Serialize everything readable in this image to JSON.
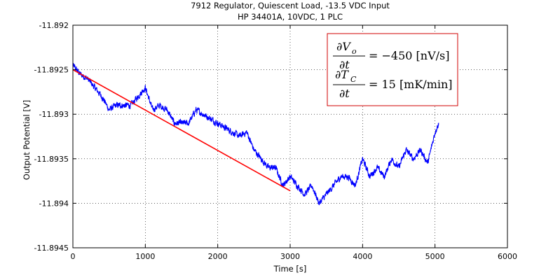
{
  "chart_data": {
    "type": "line",
    "title": "7912 Regulator, Quiescent Load, -13.5 VDC Input",
    "subtitle": "HP 34401A, 10VDC, 1 PLC",
    "xlabel": "Time [s]",
    "ylabel": "Output Potential [V]",
    "xlim": [
      0,
      6000
    ],
    "ylim": [
      -11.8945,
      -11.892
    ],
    "x_ticks": [
      0,
      1000,
      2000,
      3000,
      4000,
      5000,
      6000
    ],
    "x_tick_labels": [
      "0",
      "1000",
      "2000",
      "3000",
      "4000",
      "5000",
      "6000"
    ],
    "y_ticks": [
      -11.892,
      -11.8925,
      -11.893,
      -11.8935,
      -11.894,
      -11.8945
    ],
    "y_tick_labels": [
      "-11.892",
      "-11.8925",
      "-11.893",
      "-11.8935",
      "-11.894",
      "-11.8945"
    ],
    "grid": true,
    "annotation": {
      "line1_rhs": "= −450 [nV/s]",
      "line2_rhs": "= 15 [mK/min]"
    },
    "series": [
      {
        "color": "#0000ff",
        "noise_amplitude": 6e-05,
        "x": [
          0,
          100,
          200,
          300,
          400,
          500,
          600,
          700,
          800,
          900,
          1000,
          1100,
          1200,
          1300,
          1400,
          1500,
          1600,
          1700,
          1800,
          1900,
          2000,
          2100,
          2200,
          2300,
          2400,
          2500,
          2600,
          2700,
          2800,
          2900,
          3000,
          3100,
          3200,
          3300,
          3400,
          3500,
          3600,
          3700,
          3800,
          3900,
          4000,
          4100,
          4200,
          4300,
          4400,
          4500,
          4600,
          4700,
          4800,
          4900,
          5000,
          5050
        ],
        "y": [
          -11.89245,
          -11.89255,
          -11.8926,
          -11.8927,
          -11.8928,
          -11.89295,
          -11.8929,
          -11.8929,
          -11.8929,
          -11.8928,
          -11.8927,
          -11.89295,
          -11.8929,
          -11.89295,
          -11.8931,
          -11.8931,
          -11.8931,
          -11.89295,
          -11.893,
          -11.89305,
          -11.8931,
          -11.89315,
          -11.8932,
          -11.89325,
          -11.8932,
          -11.8934,
          -11.8935,
          -11.8936,
          -11.8936,
          -11.8938,
          -11.8937,
          -11.8938,
          -11.8939,
          -11.8938,
          -11.894,
          -11.8939,
          -11.8938,
          -11.8937,
          -11.8937,
          -11.8938,
          -11.8935,
          -11.8937,
          -11.8936,
          -11.8937,
          -11.8935,
          -11.8936,
          -11.8934,
          -11.8935,
          -11.8934,
          -11.89355,
          -11.8932,
          -11.8931
        ]
      },
      {
        "color": "#ff0000",
        "x": [
          0,
          3000
        ],
        "y": [
          -11.8925,
          -11.89386
        ]
      }
    ]
  }
}
